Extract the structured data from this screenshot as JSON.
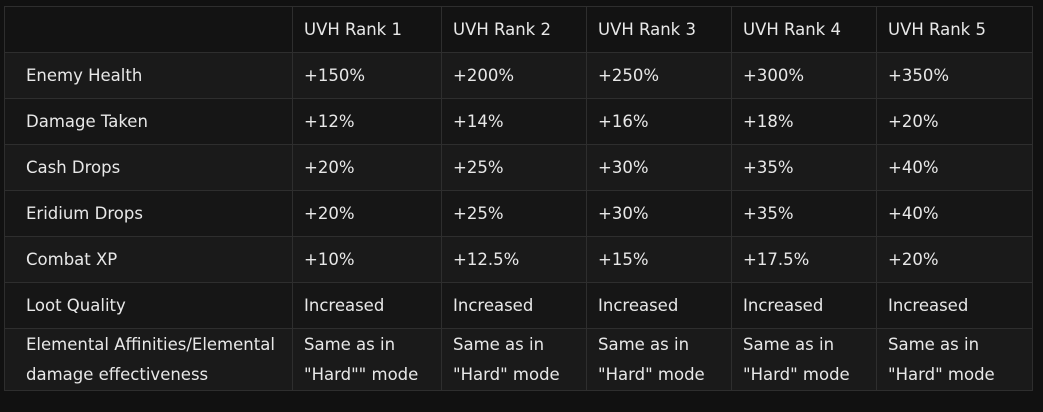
{
  "table": {
    "headers": [
      "",
      "UVH Rank 1",
      "UVH Rank 2",
      "UVH Rank 3",
      "UVH Rank 4",
      "UVH Rank 5"
    ],
    "rows": [
      {
        "label": "Enemy Health",
        "values": [
          "+150%",
          "+200%",
          "+250%",
          "+300%",
          "+350%"
        ]
      },
      {
        "label": "Damage Taken",
        "values": [
          "+12%",
          "+14%",
          "+16%",
          "+18%",
          "+20%"
        ]
      },
      {
        "label": "Cash Drops",
        "values": [
          "+20%",
          "+25%",
          "+30%",
          "+35%",
          "+40%"
        ]
      },
      {
        "label": "Eridium Drops",
        "values": [
          "+20%",
          "+25%",
          "+30%",
          "+35%",
          "+40%"
        ]
      },
      {
        "label": "Combat XP",
        "values": [
          "+10%",
          "+12.5%",
          "+15%",
          "+17.5%",
          "+20%"
        ]
      },
      {
        "label": "Loot Quality",
        "values": [
          "Increased",
          "Increased",
          "Increased",
          "Increased",
          "Increased"
        ]
      },
      {
        "label_lines": [
          "Elemental Affinities/Elemental",
          "damage effectiveness"
        ],
        "values_lines": [
          [
            "Same as in",
            "\"Hard\"\" mode"
          ],
          [
            "Same as in",
            "\"Hard\" mode"
          ],
          [
            "Same as in",
            "\"Hard\" mode"
          ],
          [
            "Same as in",
            "\"Hard\" mode"
          ],
          [
            "Same as in",
            "\"Hard\" mode"
          ]
        ]
      }
    ]
  }
}
